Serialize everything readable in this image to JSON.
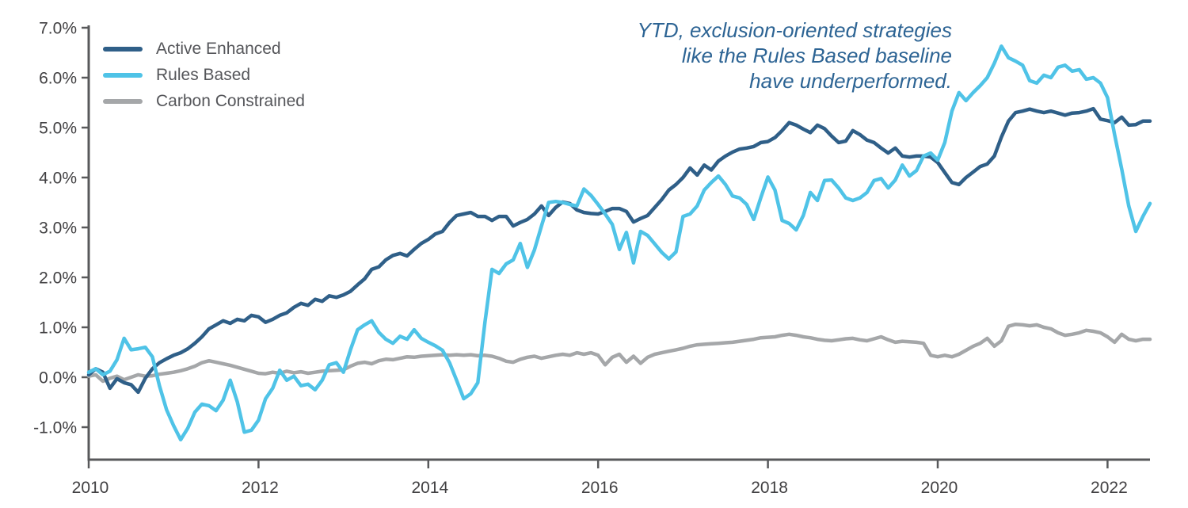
{
  "annotation": {
    "lines": [
      "YTD, exclusion-oriented strategies",
      "like the Rules Based baseline",
      "have underperformed."
    ],
    "color": "#2D6494"
  },
  "axis": {
    "line_color": "#58595B",
    "tick_label_color": "#414042"
  },
  "chart_data": {
    "type": "line",
    "title": "",
    "xlabel": "",
    "ylabel": "",
    "unit": "%",
    "grid": false,
    "legend_position": "top-left",
    "x_start": "2010-01",
    "x_step_months": 1,
    "x_tick_years": [
      2010,
      2012,
      2014,
      2016,
      2018,
      2020,
      2022
    ],
    "y_tick_values": [
      7,
      6,
      5,
      4,
      3,
      2,
      1,
      0,
      -1
    ],
    "y_tick_labels": [
      "7.0%",
      "6.0%",
      "5.0%",
      "4.0%",
      "3.0%",
      "2.0%",
      "1.0%",
      "0.0%",
      "-1.0%"
    ],
    "ylim": [
      -1.65,
      7.05
    ],
    "series": [
      {
        "name": "Active Enhanced",
        "color": "#2F5F88",
        "z": 1,
        "values": [
          0.05,
          0.17,
          0.1,
          -0.22,
          -0.03,
          -0.11,
          -0.15,
          -0.3,
          -0.02,
          0.17,
          0.29,
          0.37,
          0.44,
          0.49,
          0.57,
          0.68,
          0.81,
          0.97,
          1.05,
          1.13,
          1.08,
          1.16,
          1.13,
          1.24,
          1.21,
          1.1,
          1.16,
          1.24,
          1.29,
          1.4,
          1.48,
          1.44,
          1.56,
          1.52,
          1.63,
          1.6,
          1.65,
          1.72,
          1.85,
          1.97,
          2.16,
          2.21,
          2.35,
          2.44,
          2.48,
          2.43,
          2.56,
          2.68,
          2.76,
          2.87,
          2.92,
          3.1,
          3.24,
          3.27,
          3.3,
          3.22,
          3.22,
          3.14,
          3.22,
          3.22,
          3.03,
          3.1,
          3.16,
          3.27,
          3.43,
          3.24,
          3.4,
          3.51,
          3.48,
          3.35,
          3.3,
          3.28,
          3.27,
          3.32,
          3.38,
          3.38,
          3.32,
          3.11,
          3.18,
          3.24,
          3.4,
          3.56,
          3.75,
          3.86,
          4.0,
          4.19,
          4.05,
          4.25,
          4.15,
          4.33,
          4.43,
          4.51,
          4.57,
          4.59,
          4.62,
          4.7,
          4.72,
          4.8,
          4.94,
          5.1,
          5.05,
          4.97,
          4.9,
          5.05,
          4.98,
          4.83,
          4.7,
          4.73,
          4.94,
          4.86,
          4.75,
          4.7,
          4.59,
          4.49,
          4.59,
          4.43,
          4.41,
          4.43,
          4.43,
          4.41,
          4.3,
          4.1,
          3.9,
          3.86,
          4.0,
          4.11,
          4.22,
          4.27,
          4.43,
          4.81,
          5.13,
          5.3,
          5.33,
          5.37,
          5.33,
          5.3,
          5.33,
          5.29,
          5.25,
          5.29,
          5.3,
          5.33,
          5.38,
          5.17,
          5.14,
          5.1,
          5.21,
          5.05,
          5.06,
          5.13,
          5.13
        ]
      },
      {
        "name": "Rules Based",
        "color": "#4FC3E7",
        "z": 2,
        "values": [
          0.1,
          0.17,
          0.05,
          0.12,
          0.35,
          0.78,
          0.55,
          0.57,
          0.6,
          0.41,
          -0.17,
          -0.65,
          -0.97,
          -1.25,
          -1.02,
          -0.7,
          -0.54,
          -0.57,
          -0.67,
          -0.46,
          -0.06,
          -0.49,
          -1.1,
          -1.06,
          -0.86,
          -0.43,
          -0.22,
          0.14,
          -0.06,
          0.02,
          -0.17,
          -0.14,
          -0.25,
          -0.06,
          0.25,
          0.29,
          0.1,
          0.55,
          0.95,
          1.05,
          1.13,
          0.9,
          0.76,
          0.68,
          0.82,
          0.76,
          0.95,
          0.78,
          0.7,
          0.63,
          0.54,
          0.29,
          -0.06,
          -0.43,
          -0.33,
          -0.11,
          1.1,
          2.16,
          2.08,
          2.27,
          2.35,
          2.68,
          2.2,
          2.55,
          3.03,
          3.5,
          3.52,
          3.5,
          3.46,
          3.43,
          3.77,
          3.64,
          3.46,
          3.27,
          3.06,
          2.56,
          2.9,
          2.29,
          2.92,
          2.84,
          2.67,
          2.5,
          2.37,
          2.51,
          3.22,
          3.27,
          3.43,
          3.75,
          3.9,
          4.03,
          3.86,
          3.63,
          3.59,
          3.46,
          3.16,
          3.6,
          4.01,
          3.75,
          3.14,
          3.08,
          2.95,
          3.24,
          3.7,
          3.54,
          3.94,
          3.95,
          3.79,
          3.59,
          3.54,
          3.59,
          3.7,
          3.94,
          3.98,
          3.79,
          3.95,
          4.25,
          4.03,
          4.14,
          4.43,
          4.49,
          4.35,
          4.7,
          5.33,
          5.7,
          5.54,
          5.7,
          5.84,
          6.0,
          6.29,
          6.63,
          6.4,
          6.33,
          6.25,
          5.94,
          5.89,
          6.05,
          6.0,
          6.21,
          6.25,
          6.13,
          6.16,
          5.97,
          6.0,
          5.89,
          5.6,
          4.86,
          4.17,
          3.43,
          2.92,
          3.22,
          3.48
        ]
      },
      {
        "name": "Carbon Constrained",
        "color": "#A5A7A9",
        "z": 0,
        "values": [
          0.02,
          0.05,
          -0.08,
          -0.02,
          0.02,
          -0.05,
          0.0,
          0.05,
          0.02,
          0.03,
          0.06,
          0.08,
          0.1,
          0.13,
          0.17,
          0.22,
          0.29,
          0.33,
          0.3,
          0.27,
          0.24,
          0.2,
          0.16,
          0.12,
          0.08,
          0.07,
          0.1,
          0.08,
          0.12,
          0.09,
          0.11,
          0.08,
          0.1,
          0.12,
          0.13,
          0.14,
          0.15,
          0.22,
          0.28,
          0.3,
          0.27,
          0.33,
          0.36,
          0.35,
          0.38,
          0.41,
          0.4,
          0.42,
          0.43,
          0.44,
          0.45,
          0.44,
          0.45,
          0.44,
          0.45,
          0.43,
          0.44,
          0.42,
          0.38,
          0.32,
          0.3,
          0.36,
          0.4,
          0.42,
          0.38,
          0.41,
          0.44,
          0.46,
          0.44,
          0.49,
          0.46,
          0.49,
          0.44,
          0.25,
          0.4,
          0.46,
          0.3,
          0.42,
          0.28,
          0.4,
          0.46,
          0.49,
          0.52,
          0.55,
          0.58,
          0.62,
          0.65,
          0.66,
          0.67,
          0.68,
          0.69,
          0.7,
          0.72,
          0.74,
          0.76,
          0.79,
          0.8,
          0.81,
          0.84,
          0.86,
          0.84,
          0.81,
          0.79,
          0.76,
          0.74,
          0.73,
          0.75,
          0.77,
          0.78,
          0.75,
          0.73,
          0.77,
          0.81,
          0.75,
          0.7,
          0.72,
          0.71,
          0.7,
          0.68,
          0.44,
          0.41,
          0.44,
          0.41,
          0.46,
          0.54,
          0.62,
          0.68,
          0.78,
          0.62,
          0.73,
          1.02,
          1.06,
          1.05,
          1.03,
          1.05,
          1.0,
          0.97,
          0.89,
          0.84,
          0.86,
          0.89,
          0.94,
          0.92,
          0.89,
          0.81,
          0.7,
          0.86,
          0.76,
          0.73,
          0.76,
          0.76
        ]
      }
    ]
  }
}
